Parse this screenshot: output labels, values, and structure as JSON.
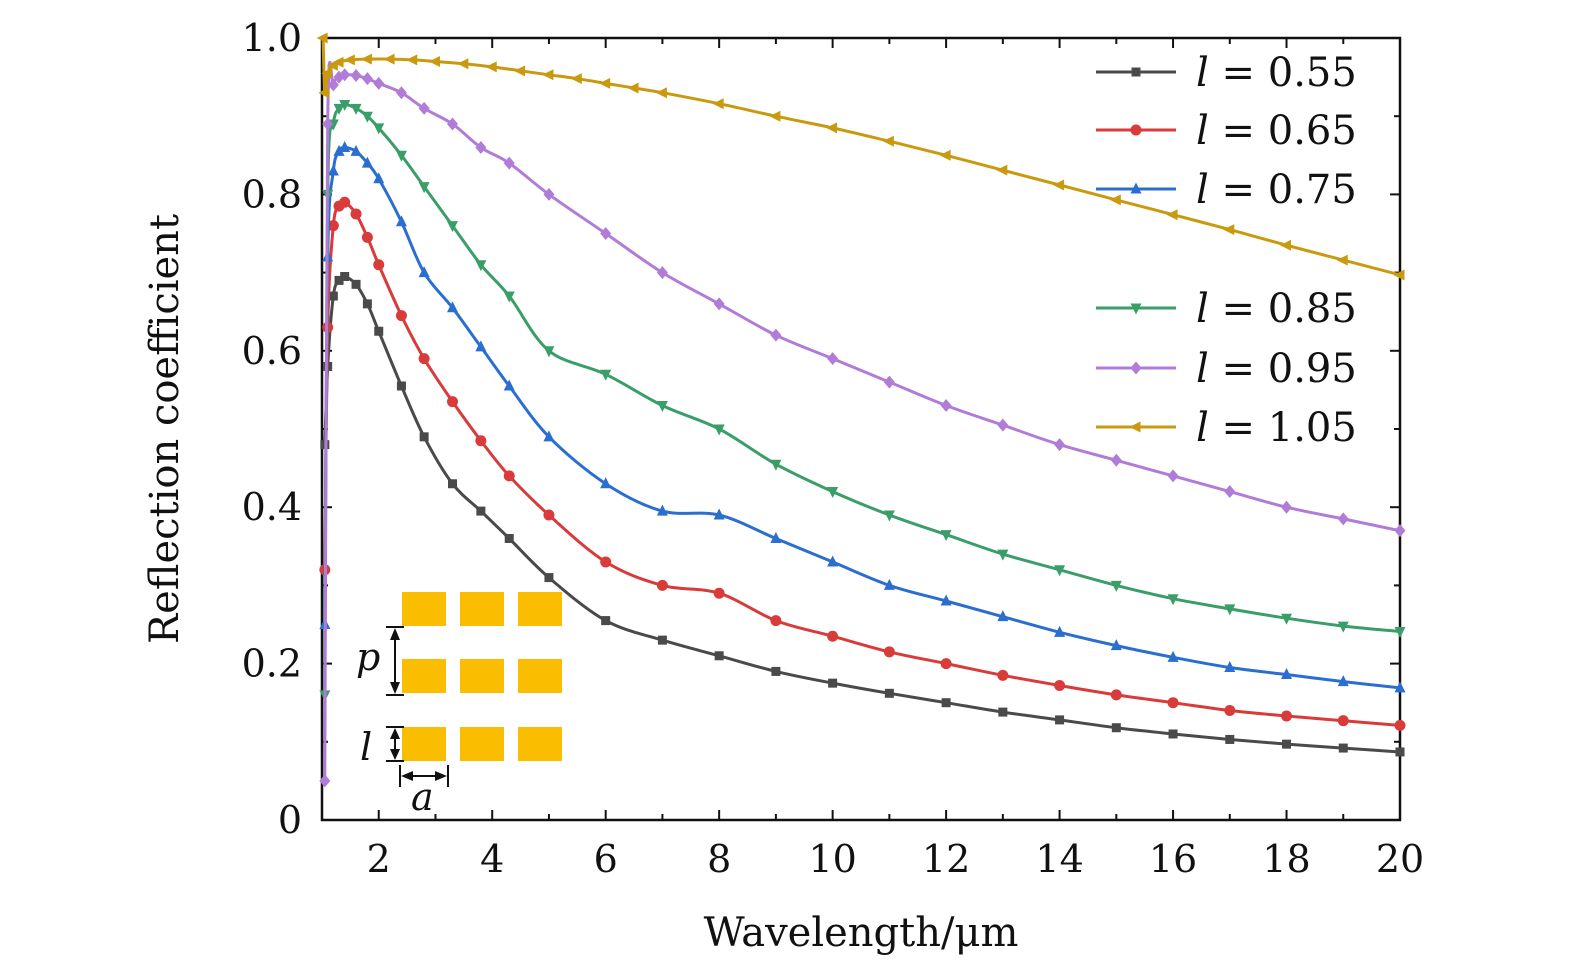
{
  "chart_data": {
    "type": "line",
    "title": "",
    "xlabel": "Wavelength/μm",
    "ylabel": "Reflection coefficient",
    "xlim": [
      1,
      20
    ],
    "ylim": [
      0,
      1.0
    ],
    "x_ticks": [
      2,
      4,
      6,
      8,
      10,
      12,
      14,
      16,
      18,
      20
    ],
    "x_tick_labels": [
      "2",
      "4",
      "6",
      "8",
      "10",
      "12",
      "14",
      "16",
      "18",
      "20"
    ],
    "y_ticks": [
      0,
      0.2,
      0.4,
      0.6,
      0.8,
      1.0
    ],
    "y_tick_labels": [
      "0",
      "0.2",
      "0.4",
      "0.6",
      "0.8",
      "1.0"
    ],
    "grid": false,
    "legend_placement": "top-right",
    "series": [
      {
        "name": "l = 0.55",
        "var": "l",
        "value": "0.55",
        "color": "#4a4a4a",
        "marker": "square",
        "x": [
          1.05,
          1.1,
          1.2,
          1.3,
          1.4,
          1.6,
          1.8,
          2.0,
          2.4,
          2.8,
          3.3,
          3.8,
          4.3,
          5.0,
          6.0,
          7.0,
          8.0,
          9.0,
          10.0,
          11.0,
          12.0,
          13.0,
          14.0,
          15.0,
          16.0,
          17.0,
          18.0,
          19.0,
          20.0
        ],
        "y": [
          0.48,
          0.58,
          0.67,
          0.69,
          0.695,
          0.685,
          0.66,
          0.625,
          0.555,
          0.49,
          0.43,
          0.395,
          0.36,
          0.31,
          0.255,
          0.23,
          0.21,
          0.19,
          0.175,
          0.162,
          0.15,
          0.138,
          0.128,
          0.118,
          0.11,
          0.103,
          0.097,
          0.092,
          0.087
        ]
      },
      {
        "name": "l = 0.65",
        "var": "l",
        "value": "0.65",
        "color": "#d93a3a",
        "marker": "circle",
        "x": [
          1.05,
          1.1,
          1.2,
          1.3,
          1.4,
          1.6,
          1.8,
          2.0,
          2.4,
          2.8,
          3.3,
          3.8,
          4.3,
          5.0,
          6.0,
          7.0,
          8.0,
          9.0,
          10.0,
          11.0,
          12.0,
          13.0,
          14.0,
          15.0,
          16.0,
          17.0,
          18.0,
          19.0,
          20.0
        ],
        "y": [
          0.32,
          0.63,
          0.76,
          0.785,
          0.79,
          0.775,
          0.745,
          0.71,
          0.645,
          0.59,
          0.535,
          0.485,
          0.44,
          0.39,
          0.33,
          0.3,
          0.29,
          0.255,
          0.235,
          0.215,
          0.2,
          0.185,
          0.172,
          0.16,
          0.15,
          0.14,
          0.133,
          0.127,
          0.121
        ]
      },
      {
        "name": "l = 0.75",
        "var": "l",
        "value": "0.75",
        "color": "#2a6fd0",
        "marker": "triangle-up",
        "x": [
          1.05,
          1.1,
          1.2,
          1.3,
          1.4,
          1.6,
          1.8,
          2.0,
          2.4,
          2.8,
          3.3,
          3.8,
          4.3,
          5.0,
          6.0,
          7.0,
          8.0,
          9.0,
          10.0,
          11.0,
          12.0,
          13.0,
          14.0,
          15.0,
          16.0,
          17.0,
          18.0,
          19.0,
          20.0
        ],
        "y": [
          0.25,
          0.72,
          0.83,
          0.855,
          0.86,
          0.855,
          0.84,
          0.82,
          0.765,
          0.7,
          0.655,
          0.605,
          0.555,
          0.49,
          0.43,
          0.395,
          0.39,
          0.36,
          0.33,
          0.3,
          0.28,
          0.26,
          0.24,
          0.223,
          0.208,
          0.195,
          0.186,
          0.177,
          0.169
        ]
      },
      {
        "name": "l = 0.85",
        "var": "l",
        "value": "0.85",
        "color": "#3a9e68",
        "marker": "triangle-down",
        "x": [
          1.05,
          1.1,
          1.2,
          1.3,
          1.4,
          1.6,
          1.8,
          2.0,
          2.4,
          2.8,
          3.3,
          3.8,
          4.3,
          5.0,
          6.0,
          7.0,
          8.0,
          9.0,
          10.0,
          11.0,
          12.0,
          13.0,
          14.0,
          15.0,
          16.0,
          17.0,
          18.0,
          19.0,
          20.0
        ],
        "y": [
          0.16,
          0.8,
          0.89,
          0.91,
          0.915,
          0.91,
          0.9,
          0.885,
          0.85,
          0.81,
          0.76,
          0.71,
          0.67,
          0.6,
          0.57,
          0.53,
          0.5,
          0.455,
          0.42,
          0.39,
          0.365,
          0.34,
          0.32,
          0.3,
          0.283,
          0.27,
          0.258,
          0.248,
          0.241
        ]
      },
      {
        "name": "l = 0.95",
        "var": "l",
        "value": "0.95",
        "color": "#b07cd8",
        "marker": "diamond",
        "x": [
          1.05,
          1.1,
          1.2,
          1.3,
          1.4,
          1.6,
          1.8,
          2.0,
          2.4,
          2.8,
          3.3,
          3.8,
          4.3,
          5.0,
          6.0,
          7.0,
          8.0,
          9.0,
          10.0,
          11.0,
          12.0,
          13.0,
          14.0,
          15.0,
          16.0,
          17.0,
          18.0,
          19.0,
          20.0
        ],
        "y": [
          0.05,
          0.89,
          0.94,
          0.95,
          0.953,
          0.952,
          0.948,
          0.942,
          0.93,
          0.91,
          0.89,
          0.86,
          0.84,
          0.8,
          0.75,
          0.7,
          0.66,
          0.62,
          0.59,
          0.56,
          0.53,
          0.505,
          0.48,
          0.46,
          0.44,
          0.42,
          0.4,
          0.385,
          0.37
        ]
      },
      {
        "name": "l = 1.05",
        "var": "l",
        "value": "1.05",
        "color": "#c9990e",
        "marker": "triangle-left",
        "x": [
          1.02,
          1.05,
          1.1,
          1.2,
          1.3,
          1.5,
          1.8,
          2.2,
          2.6,
          3.0,
          3.5,
          4.0,
          4.5,
          5.0,
          5.5,
          6.0,
          6.5,
          7.0,
          8.0,
          9.0,
          10.0,
          11.0,
          12.0,
          13.0,
          14.0,
          15.0,
          16.0,
          17.0,
          18.0,
          19.0,
          20.0
        ],
        "y": [
          1.0,
          0.93,
          0.955,
          0.965,
          0.969,
          0.972,
          0.973,
          0.973,
          0.972,
          0.97,
          0.967,
          0.963,
          0.958,
          0.953,
          0.948,
          0.942,
          0.936,
          0.93,
          0.916,
          0.9,
          0.885,
          0.868,
          0.85,
          0.831,
          0.812,
          0.793,
          0.774,
          0.755,
          0.735,
          0.716,
          0.697
        ]
      }
    ]
  },
  "inset": {
    "fill_color": "#fbbd00",
    "label_p": "p",
    "label_l": "l",
    "label_a": "a"
  }
}
